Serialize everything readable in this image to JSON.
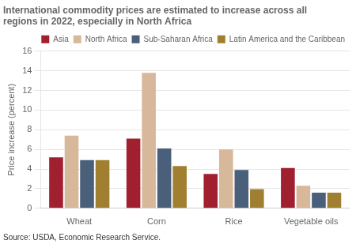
{
  "chart_data": {
    "type": "bar",
    "title": [
      "International commodity prices are estimated to increase across all",
      "regions in 2022, especially in North Africa"
    ],
    "ylabel": "Price increase (percent)",
    "annotations": [
      "Source: USDA, Economic Research Service."
    ],
    "categories": [
      "Wheat",
      "Corn",
      "Rice",
      "Vegetable oils"
    ],
    "series": [
      {
        "name": "Asia",
        "color": "#a02030",
        "values": [
          5.2,
          7.1,
          3.5,
          4.1
        ]
      },
      {
        "name": "North Africa",
        "color": "#d8b89a",
        "values": [
          7.4,
          13.8,
          6.0,
          2.3
        ]
      },
      {
        "name": "Sub-Saharan Africa",
        "color": "#4a5f7a",
        "values": [
          4.9,
          6.1,
          3.9,
          1.6
        ]
      },
      {
        "name": "Latin America and the Caribbean",
        "color": "#a08030",
        "values": [
          4.9,
          4.3,
          1.95,
          1.6
        ]
      }
    ],
    "ylim": [
      0,
      16
    ],
    "yticks": [
      0,
      2,
      4,
      6,
      8,
      10,
      12,
      14,
      16
    ],
    "grid": true,
    "legend": "upper right"
  }
}
